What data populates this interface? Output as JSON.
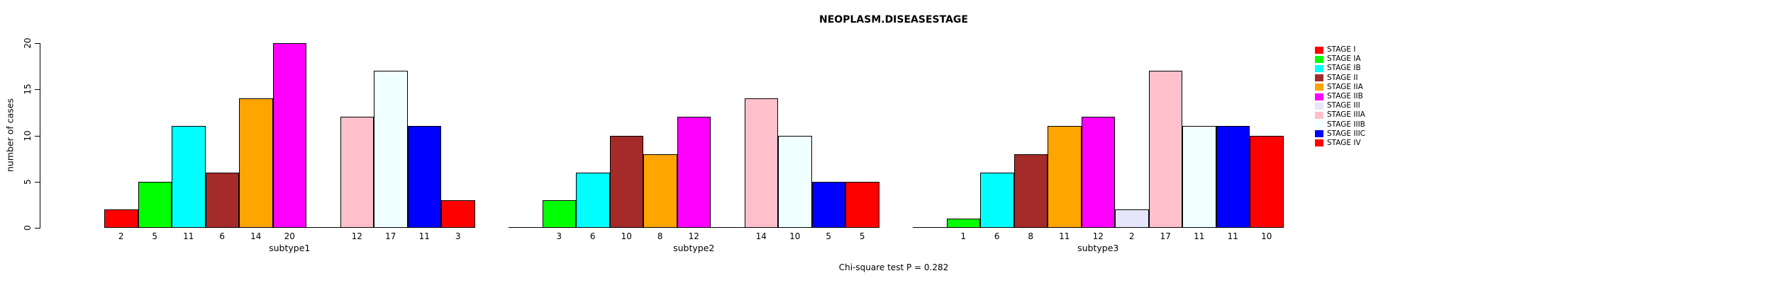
{
  "figure": {
    "title": "NEOPLASM.DISEASESTAGE",
    "y_axis_label": "number of cases",
    "footer_note": "Chi-square test P = 0.282"
  },
  "chart_data": {
    "type": "bar",
    "title": "NEOPLASM.DISEASESTAGE",
    "xlabel": "",
    "ylabel": "number of cases",
    "ylim": [
      0,
      20
    ],
    "yticks": [
      0,
      5,
      10,
      15,
      20
    ],
    "grid": false,
    "legend_position": "right-outside",
    "annotation": "Chi-square test P = 0.282",
    "value_label_rule": "each bar's count printed below its slot; zero counts draw a flat baseline segment and no label",
    "categories": [
      "subtype1",
      "subtype2",
      "subtype3"
    ],
    "series": [
      {
        "name": "STAGE I",
        "color": "#FF0000",
        "values": [
          2,
          0,
          0
        ]
      },
      {
        "name": "STAGE IA",
        "color": "#00FF00",
        "values": [
          5,
          3,
          1
        ]
      },
      {
        "name": "STAGE IB",
        "color": "#00FFFF",
        "values": [
          11,
          6,
          6
        ]
      },
      {
        "name": "STAGE II",
        "color": "#A52A2A",
        "values": [
          6,
          10,
          8
        ]
      },
      {
        "name": "STAGE IIA",
        "color": "#FFA500",
        "values": [
          14,
          8,
          11
        ]
      },
      {
        "name": "STAGE IIB",
        "color": "#FF00FF",
        "values": [
          20,
          12,
          12
        ]
      },
      {
        "name": "STAGE III",
        "color": "#E6E6FA",
        "values": [
          0,
          0,
          2
        ]
      },
      {
        "name": "STAGE IIIA",
        "color": "#FFC0CB",
        "values": [
          12,
          14,
          17
        ]
      },
      {
        "name": "STAGE IIIB",
        "color": "#F0FFFF",
        "values": [
          17,
          10,
          11
        ]
      },
      {
        "name": "STAGE IIIC",
        "color": "#0000FF",
        "values": [
          11,
          5,
          11
        ]
      },
      {
        "name": "STAGE IV",
        "color": "#FF0000",
        "values": [
          3,
          5,
          10
        ]
      }
    ]
  }
}
